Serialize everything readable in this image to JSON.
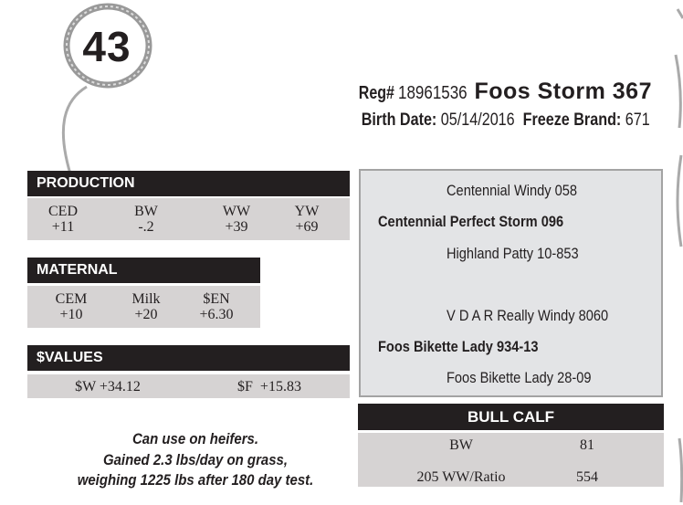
{
  "lot": {
    "number": "43"
  },
  "header": {
    "reg_label": "Reg#",
    "reg_number": "18961536",
    "name": "Foos Storm 367",
    "birth_label": "Birth Date:",
    "birth_date": "05/14/2016",
    "brand_label": "Freeze Brand:",
    "brand": "671"
  },
  "production": {
    "title": "PRODUCTION",
    "items": [
      {
        "label": "CED",
        "value": "+11"
      },
      {
        "label": "BW",
        "value": "-.2"
      },
      {
        "label": "WW",
        "value": "+39"
      },
      {
        "label": "YW",
        "value": "+69"
      }
    ]
  },
  "maternal": {
    "title": "MATERNAL",
    "items": [
      {
        "label": "CEM",
        "value": "+10"
      },
      {
        "label": "Milk",
        "value": "+20"
      },
      {
        "label": "$EN",
        "value": "+6.30"
      }
    ]
  },
  "values": {
    "title": "$VALUES",
    "w": "$W +34.12",
    "f": "$F  +15.83"
  },
  "notes": [
    "Can use on heifers.",
    "Gained 2.3 lbs/day on grass,",
    "weighing 1225 lbs after 180 day test."
  ],
  "pedigree": {
    "sire_sire": "Centennial Windy 058",
    "sire": "Centennial Perfect Storm 096",
    "sire_dam": "Highland Patty 10-853",
    "dam_sire": "V D A R Really Windy 8060",
    "dam": "Foos Bikette Lady 934-13",
    "dam_dam": "Foos Bikette Lady 28-09"
  },
  "bull_calf": {
    "title": "BULL CALF",
    "rows": [
      {
        "label": "BW",
        "value": "81"
      },
      {
        "label": "205 WW/Ratio",
        "value": "554"
      }
    ]
  }
}
